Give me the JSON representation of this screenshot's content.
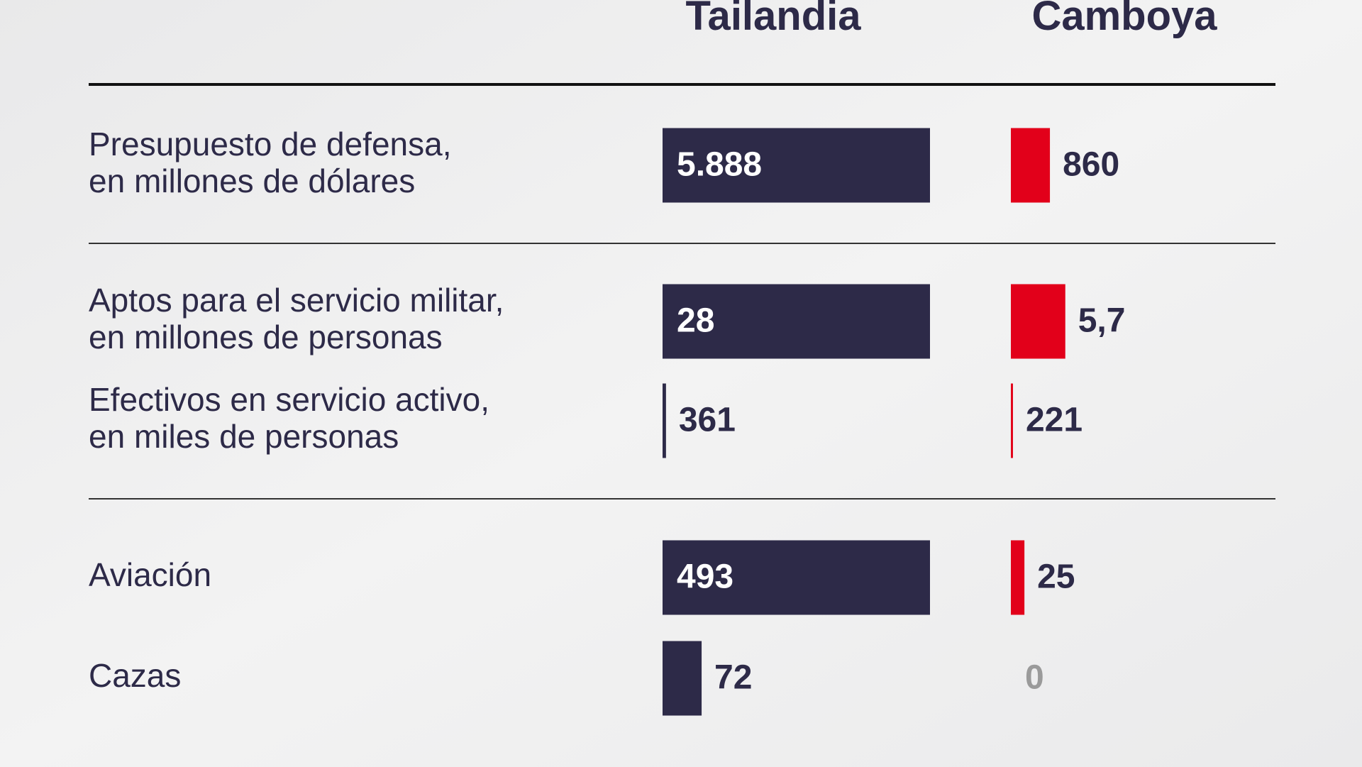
{
  "chart_data": {
    "type": "paired-bar",
    "series": [
      {
        "name": "Tailandia",
        "color": "#2d2a48"
      },
      {
        "name": "Camboya",
        "color": "#e2001a"
      }
    ],
    "groups": [
      {
        "rows": [
          {
            "label": [
              "Presupuesto de defensa,",
              "en millones de dólares"
            ],
            "values": [
              5888,
              860
            ],
            "value_labels": [
              "5.888",
              "860"
            ]
          }
        ]
      },
      {
        "rows": [
          {
            "label": [
              "Aptos para el servicio militar,",
              "en millones de personas"
            ],
            "values": [
              28000000,
              5700000
            ],
            "value_labels": [
              "28",
              "5,7"
            ]
          },
          {
            "label": [
              "Efectivos en servicio activo,",
              "en miles de personas"
            ],
            "values": [
              361000,
              221000
            ],
            "value_labels": [
              "361",
              "221"
            ]
          }
        ]
      },
      {
        "rows": [
          {
            "label": [
              "Aviación"
            ],
            "values": [
              493,
              25
            ],
            "value_labels": [
              "493",
              "25"
            ]
          },
          {
            "label": [
              "Cazas"
            ],
            "values": [
              72,
              0
            ],
            "value_labels": [
              "72",
              "0"
            ]
          }
        ]
      }
    ]
  }
}
